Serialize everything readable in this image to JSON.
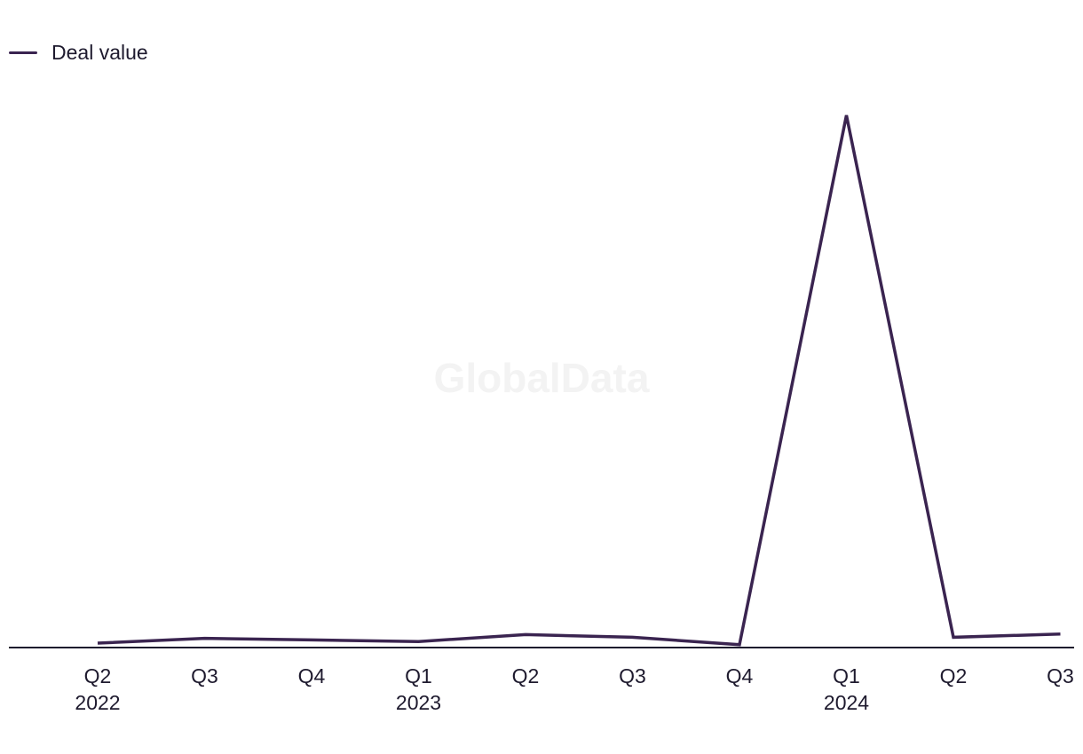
{
  "legend": {
    "label": "Deal value"
  },
  "watermark": "GlobalData",
  "colors": {
    "line": "#3a2450",
    "axis": "#1e1a2e"
  },
  "chart_data": {
    "type": "line",
    "title": "",
    "xlabel": "",
    "ylabel": "",
    "categories": [
      "Q2 2022",
      "Q3 2022",
      "Q4 2022",
      "Q1 2023",
      "Q2 2023",
      "Q3 2023",
      "Q4 2023",
      "Q1 2024",
      "Q2 2024",
      "Q3 2024"
    ],
    "tick_labels": [
      {
        "quarter": "Q2",
        "year": "2022"
      },
      {
        "quarter": "Q3",
        "year": ""
      },
      {
        "quarter": "Q4",
        "year": ""
      },
      {
        "quarter": "Q1",
        "year": "2023"
      },
      {
        "quarter": "Q2",
        "year": ""
      },
      {
        "quarter": "Q3",
        "year": ""
      },
      {
        "quarter": "Q4",
        "year": ""
      },
      {
        "quarter": "Q1",
        "year": "2024"
      },
      {
        "quarter": "Q2",
        "year": ""
      },
      {
        "quarter": "Q3",
        "year": ""
      }
    ],
    "series": [
      {
        "name": "Deal value",
        "values": [
          0.5,
          1.4,
          1.1,
          0.8,
          2.1,
          1.6,
          0.2,
          100,
          1.6,
          2.2
        ]
      }
    ],
    "ylim": [
      0,
      100
    ],
    "grid": false,
    "legend_position": "top-left"
  }
}
